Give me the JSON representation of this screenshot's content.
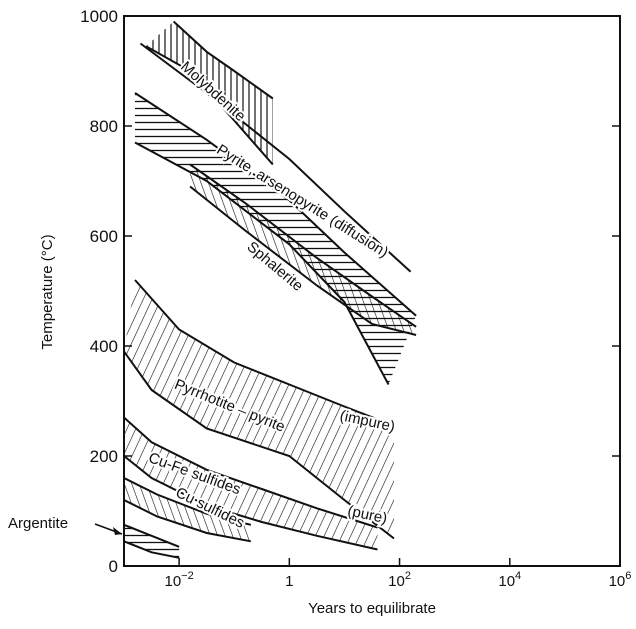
{
  "chart_data": {
    "type": "area",
    "xlabel": "Years to equilibrate",
    "ylabel": "Temperature (°C)",
    "xscale": "log",
    "xlim_log10": [
      -3,
      6
    ],
    "ylim": [
      0,
      1000
    ],
    "grid": false,
    "x_ticks": [
      {
        "log10": -2,
        "label": "10",
        "sup": "−2"
      },
      {
        "log10": 0,
        "label": "1",
        "sup": ""
      },
      {
        "log10": 2,
        "label": "10",
        "sup": "2"
      },
      {
        "log10": 4,
        "label": "10",
        "sup": "4"
      },
      {
        "log10": 6,
        "label": "10",
        "sup": "6"
      }
    ],
    "y_ticks": [
      0,
      200,
      400,
      600,
      800,
      1000
    ],
    "bands": [
      {
        "name": "Molybdenite",
        "upper": [
          [
            -2.1,
            990
          ],
          [
            -1.5,
            935
          ],
          [
            -1,
            900
          ],
          [
            -0.3,
            850
          ]
        ],
        "lower": [
          [
            -2.6,
            945
          ],
          [
            -1.8,
            900
          ],
          [
            -1,
            810
          ],
          [
            -0.3,
            730
          ]
        ]
      },
      {
        "name": "Pyrite, arsenopyrite (diffusion)",
        "upper": [
          [
            -2.7,
            950
          ],
          [
            -1.5,
            860
          ],
          [
            0,
            740
          ],
          [
            1,
            645
          ],
          [
            2.2,
            535
          ]
        ],
        "lower": []
      },
      {
        "name": "Sphalerite",
        "upper": [
          [
            -2.8,
            860
          ],
          [
            -1.5,
            775
          ],
          [
            0,
            665
          ],
          [
            1,
            570
          ],
          [
            2.3,
            455
          ]
        ],
        "lower": [
          [
            -2.8,
            770
          ],
          [
            -1.5,
            700
          ],
          [
            0,
            585
          ],
          [
            1,
            480
          ],
          [
            1.8,
            330
          ]
        ]
      },
      {
        "name": "Sphalerite",
        "upper": [
          [
            -1.8,
            730
          ],
          [
            -0.8,
            660
          ],
          [
            0.5,
            560
          ],
          [
            1.5,
            490
          ],
          [
            2.3,
            435
          ]
        ],
        "lower": [
          [
            -1.8,
            690
          ],
          [
            -0.8,
            610
          ],
          [
            0.5,
            510
          ],
          [
            1.5,
            440
          ],
          [
            2.3,
            420
          ]
        ]
      },
      {
        "name": "Pyrrhotite – pyrite",
        "upper": [
          [
            -2.8,
            520
          ],
          [
            -2,
            430
          ],
          [
            -1,
            370
          ],
          [
            0,
            330
          ],
          [
            1,
            290
          ],
          [
            1.9,
            255
          ]
        ],
        "lower": [
          [
            -3,
            390
          ],
          [
            -2.5,
            320
          ],
          [
            -1.5,
            250
          ],
          [
            0,
            200
          ],
          [
            1,
            120
          ],
          [
            1.9,
            50
          ]
        ]
      },
      {
        "name": "Cu-Fe sulfides",
        "upper": [
          [
            -3,
            270
          ],
          [
            -2.5,
            225
          ],
          [
            -1.5,
            175
          ],
          [
            -0.5,
            140
          ],
          [
            0.5,
            105
          ],
          [
            1.6,
            70
          ]
        ],
        "lower": [
          [
            -3,
            200
          ],
          [
            -2.5,
            160
          ],
          [
            -1.5,
            110
          ],
          [
            -0.5,
            80
          ],
          [
            0.5,
            55
          ],
          [
            1.6,
            30
          ]
        ]
      },
      {
        "name": "Cu sulfides",
        "upper": [
          [
            -3,
            160
          ],
          [
            -2.4,
            130
          ],
          [
            -1.5,
            95
          ],
          [
            -0.7,
            75
          ]
        ],
        "lower": [
          [
            -3,
            120
          ],
          [
            -2.4,
            90
          ],
          [
            -1.5,
            60
          ],
          [
            -0.7,
            45
          ]
        ]
      },
      {
        "name": "Argentite",
        "upper": [
          [
            -3,
            75
          ],
          [
            -2.5,
            55
          ],
          [
            -2,
            35
          ]
        ],
        "lower": [
          [
            -3,
            45
          ],
          [
            -2.5,
            25
          ],
          [
            -2,
            15
          ]
        ]
      }
    ],
    "annotations": [
      {
        "text": "(impure)",
        "at": [
          1.4,
          255
        ]
      },
      {
        "text": "(pure)",
        "at": [
          1.4,
          85
        ]
      }
    ]
  }
}
